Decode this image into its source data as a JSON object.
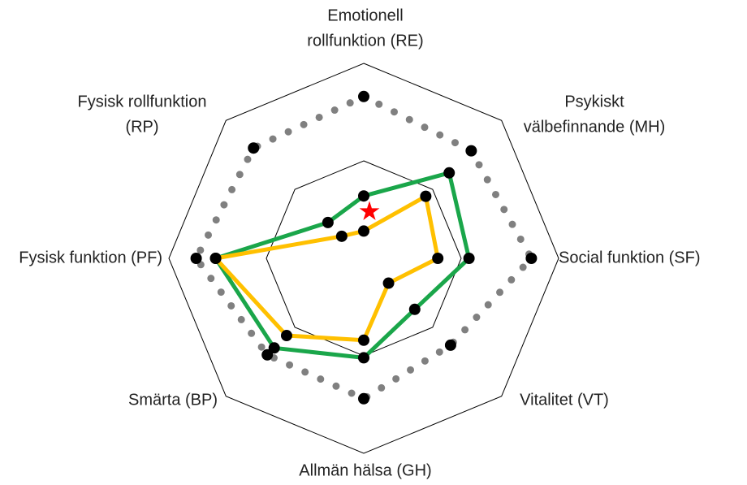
{
  "chart_data": {
    "type": "radar",
    "categories": [
      "Emotionell\nrollfunktion (RE)",
      "Psykiskt\nvälbefinnande (MH)",
      "Social funktion (SF)",
      "Vitalitet (VT)",
      "Allmän hälsa (GH)",
      "Smärta (BP)",
      "Fysisk funktion (PF)",
      "Fysisk rollfunktion\n(RP)"
    ],
    "rlim": [
      0,
      100
    ],
    "rticks": [
      50,
      100
    ],
    "series": [
      {
        "color": "#808080",
        "style": "dotted",
        "values": [
          83,
          78,
          86,
          63,
          72,
          70,
          86,
          80
        ]
      },
      {
        "color": "#1aa64a",
        "style": "solid",
        "values": [
          32,
          62,
          54,
          37,
          51,
          65,
          76,
          26
        ]
      },
      {
        "color": "#ffc000",
        "style": "solid",
        "values": [
          14,
          45,
          38,
          18,
          42,
          56,
          76,
          16
        ]
      }
    ],
    "star_color": "#ff0000",
    "star_values": [
      24,
      null,
      null,
      null,
      null,
      null,
      null,
      null
    ]
  }
}
